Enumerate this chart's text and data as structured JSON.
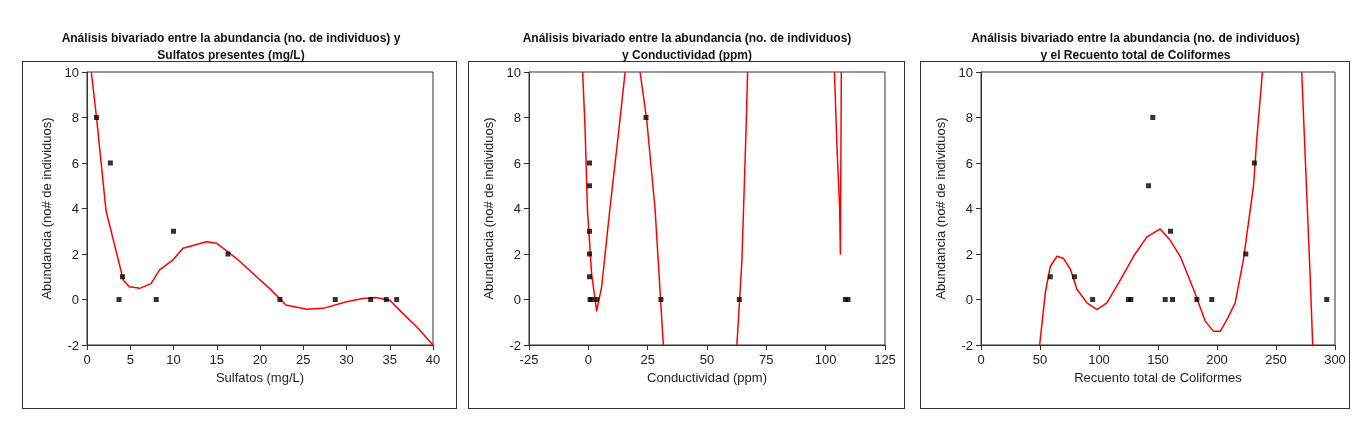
{
  "chart_data": [
    {
      "type": "scatter",
      "title": "Análisis bivariado entre la abundancia (no. de individuos) y\nSulfatos presentes (mg/L)",
      "xlabel": "Sulfatos (mg/L)",
      "ylabel": "Abundancia (no# de individuos)",
      "xlim": [
        0,
        40
      ],
      "xticks": [
        0,
        5,
        10,
        15,
        20,
        25,
        30,
        35,
        40
      ],
      "ylim": [
        -2,
        10
      ],
      "yticks": [
        -2,
        0,
        2,
        4,
        6,
        8,
        10
      ],
      "grid": false,
      "series": [
        {
          "marker": "square",
          "color": "#000000",
          "x": [
            1.1,
            2.7,
            4.1,
            3.7,
            8.0,
            10.0,
            16.3,
            22.3,
            28.7,
            32.8,
            34.6,
            35.8
          ],
          "values": [
            8,
            6,
            1,
            0,
            0,
            3,
            2,
            0,
            0,
            0,
            0,
            0
          ]
        },
        {
          "type": "line",
          "marker": "none",
          "color": "#ff0000",
          "x": [
            0.5,
            1.1,
            2.2,
            4.2,
            4.9,
            6.1,
            7.4,
            8.4,
            9.9,
            11.1,
            13.8,
            15.0,
            17.3,
            19.6,
            21.1,
            23.0,
            25.4,
            27.3,
            30.0,
            31.9,
            33.4,
            35.0,
            36.5,
            38.1,
            40.0
          ],
          "values": [
            10,
            8,
            3.9,
            0.85,
            0.56,
            0.49,
            0.7,
            1.3,
            1.73,
            2.25,
            2.54,
            2.47,
            1.8,
            1.0,
            0.49,
            -0.24,
            -0.43,
            -0.39,
            -0.1,
            0.04,
            0.09,
            -0.03,
            -0.61,
            -1.2,
            -2
          ]
        }
      ]
    },
    {
      "type": "scatter",
      "title": "Análisis bivariado entre la abundancia (no. de individuos)\ny Conductividad (ppm)",
      "xlabel": "Conductividad (ppm)",
      "ylabel": "Abundancia (no# de individuos)",
      "xlim": [
        -25,
        125
      ],
      "xticks": [
        -25,
        0,
        25,
        50,
        75,
        100,
        125
      ],
      "ylim": [
        -2,
        10
      ],
      "yticks": [
        -2,
        0,
        2,
        4,
        6,
        8,
        10
      ],
      "grid": false,
      "series": [
        {
          "marker": "square",
          "color": "#000000",
          "x": [
            0.5,
            0.5,
            0.5,
            0.5,
            0.5,
            0.7,
            1.4,
            3.5,
            24.3,
            30.6,
            63.6,
            108.3,
            109.4
          ],
          "values": [
            6,
            5,
            3,
            2,
            1,
            0,
            0,
            0,
            8,
            0,
            0,
            0,
            0
          ]
        },
        {
          "type": "line",
          "marker": "none",
          "color": "#ff0000",
          "x": [
            -2.4,
            -1.4,
            -0.4,
            1.4,
            3.5,
            5.6,
            9.1,
            12.7,
            15.5,
            null,
            21.8,
            24.6,
            28.1,
            31.6,
            null,
            62.6,
            64.7,
            66.5,
            67.1,
            null,
            103.7,
            104.8,
            105.9,
            106.2,
            106.6
          ],
          "values": [
            10,
            7.6,
            4.0,
            1.1,
            -0.5,
            0.55,
            4.0,
            7.3,
            10,
            null,
            10,
            7.9,
            4.0,
            -2,
            null,
            -2,
            1.7,
            7.6,
            10,
            null,
            10,
            6.6,
            4.0,
            2.0,
            10
          ]
        }
      ]
    },
    {
      "type": "scatter",
      "title": "Análisis bivariado entre la abundancia (no. de individuos)\ny el Recuento total de Coliformes",
      "xlabel": "Recuento total de Coliformes",
      "ylabel": "Abundancia (no# de individuos)",
      "xlim": [
        0,
        300
      ],
      "xticks": [
        0,
        50,
        100,
        150,
        200,
        250,
        300
      ],
      "ylim": [
        -2,
        10
      ],
      "yticks": [
        -2,
        0,
        2,
        4,
        6,
        8,
        10
      ],
      "grid": false,
      "series": [
        {
          "marker": "square",
          "color": "#000000",
          "x": [
            58.7,
            79.3,
            94.6,
            125,
            127,
            142,
            145.6,
            156.1,
            160.6,
            162.3,
            182.9,
            195.6,
            224.4,
            231.7,
            293
          ],
          "values": [
            1,
            1,
            0,
            0,
            0,
            5,
            8,
            0,
            3,
            0,
            0,
            0,
            2,
            6,
            0
          ]
        },
        {
          "type": "line",
          "marker": "none",
          "color": "#ff0000",
          "x": [
            49.7,
            54.5,
            58.7,
            64.4,
            70,
            75.6,
            81.3,
            89.8,
            98.3,
            106.7,
            118,
            129.3,
            140.6,
            151.9,
            160.3,
            168.8,
            180.1,
            190,
            197,
            202.7,
            208.3,
            215.4,
            222.4,
            230.9,
            233.7,
            238.5,
            null,
            271.8,
            276,
            278.9,
            281.1
          ],
          "values": [
            -2,
            0.3,
            1.45,
            1.9,
            1.8,
            1.35,
            0.45,
            -0.15,
            -0.45,
            -0.15,
            0.85,
            1.9,
            2.75,
            3.1,
            2.6,
            1.9,
            0.45,
            -0.95,
            -1.4,
            -1.4,
            -0.9,
            -0.15,
            1.75,
            4.98,
            7.03,
            10,
            null,
            10,
            4.7,
            1.07,
            -2
          ]
        }
      ]
    }
  ]
}
